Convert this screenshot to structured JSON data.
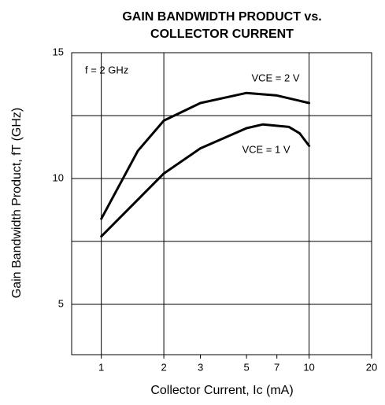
{
  "chart_data": {
    "type": "line",
    "title": [
      "GAIN BANDWIDTH PRODUCT vs.",
      "COLLECTOR CURRENT"
    ],
    "x_label": "Collector Current, Ic (mA)",
    "y_label": "Gain Bandwidth Product, fT (GHz)",
    "annotations": [
      "f = 2 GHz"
    ],
    "xscale": "log",
    "xlim": [
      0.72,
      20
    ],
    "xticks": [
      1,
      2,
      3,
      5,
      7,
      10,
      20
    ],
    "xgrid": [
      1,
      2,
      10
    ],
    "ylim": [
      3,
      15
    ],
    "yticks": [
      5,
      10,
      15
    ],
    "minor_ygrid": [
      7.5,
      12.5
    ],
    "grid": true,
    "series": [
      {
        "name": "VCE = 2 V",
        "color": "#000000",
        "x": [
          1,
          1.5,
          2,
          3,
          5,
          7,
          10
        ],
        "values": [
          8.4,
          11.1,
          12.3,
          13.0,
          13.4,
          13.3,
          13.0
        ]
      },
      {
        "name": "VCE = 1 V",
        "color": "#000000",
        "x": [
          1,
          2,
          3,
          5,
          6,
          8,
          9,
          10
        ],
        "values": [
          7.7,
          10.2,
          11.2,
          12.0,
          12.15,
          12.05,
          11.8,
          11.3
        ]
      }
    ]
  }
}
